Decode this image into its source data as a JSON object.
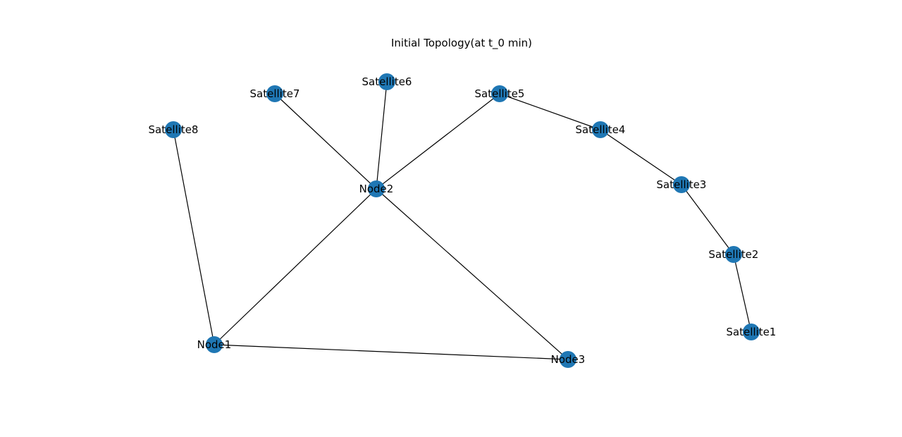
{
  "title": "Initial Topology(at t_0 min)",
  "node_color": "#1f77b4",
  "edge_color": "#000000",
  "nodes": [
    {
      "id": "Node1",
      "label": "Node1"
    },
    {
      "id": "Node2",
      "label": "Node2"
    },
    {
      "id": "Node3",
      "label": "Node3"
    },
    {
      "id": "Satellite1",
      "label": "Satellite1"
    },
    {
      "id": "Satellite2",
      "label": "Satellite2"
    },
    {
      "id": "Satellite3",
      "label": "Satellite3"
    },
    {
      "id": "Satellite4",
      "label": "Satellite4"
    },
    {
      "id": "Satellite5",
      "label": "Satellite5"
    },
    {
      "id": "Satellite6",
      "label": "Satellite6"
    },
    {
      "id": "Satellite7",
      "label": "Satellite7"
    },
    {
      "id": "Satellite8",
      "label": "Satellite8"
    }
  ],
  "edges": [
    {
      "source": "Node1",
      "target": "Node2"
    },
    {
      "source": "Node1",
      "target": "Node3"
    },
    {
      "source": "Node1",
      "target": "Satellite8"
    },
    {
      "source": "Node2",
      "target": "Node3"
    },
    {
      "source": "Node2",
      "target": "Satellite5"
    },
    {
      "source": "Node2",
      "target": "Satellite6"
    },
    {
      "source": "Node2",
      "target": "Satellite7"
    },
    {
      "source": "Satellite5",
      "target": "Satellite4"
    },
    {
      "source": "Satellite4",
      "target": "Satellite3"
    },
    {
      "source": "Satellite3",
      "target": "Satellite2"
    },
    {
      "source": "Satellite2",
      "target": "Satellite1"
    }
  ]
}
